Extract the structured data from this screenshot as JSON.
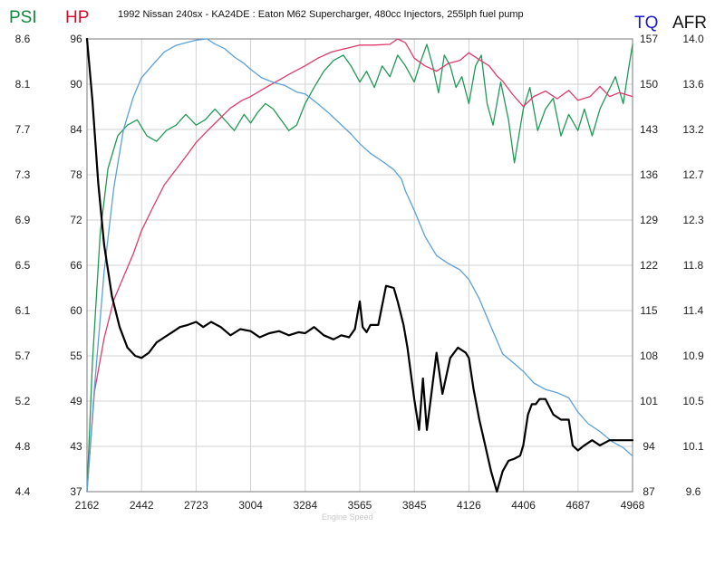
{
  "chart_data": {
    "type": "line",
    "title": "1992 Nissan 240sx - KA24DE : Eaton M62 Supercharger, 480cc Injectors, 255lph fuel pump",
    "xlabel": "Engine Speed",
    "grid": true,
    "x_ticks": [
      "2162",
      "2442",
      "2723",
      "3004",
      "3284",
      "3565",
      "3845",
      "4126",
      "4406",
      "4687",
      "4968"
    ],
    "xlim": [
      2162,
      4968
    ],
    "axes": {
      "psi": {
        "label": "PSI",
        "color": "#0f8a3c",
        "ticks": [
          "8.6",
          "8.1",
          "7.7",
          "7.3",
          "6.9",
          "6.5",
          "6.1",
          "5.7",
          "5.2",
          "4.8",
          "4.4"
        ],
        "ylim": [
          4.4,
          8.6
        ]
      },
      "hp": {
        "label": "HP",
        "color": "#d0102a",
        "ticks": [
          "96",
          "90",
          "84",
          "78",
          "72",
          "66",
          "60",
          "55",
          "49",
          "43",
          "37"
        ],
        "ylim": [
          37,
          96
        ]
      },
      "tq": {
        "label": "TQ",
        "color": "#1a1acc",
        "ticks": [
          "157",
          "150",
          "143",
          "136",
          "129",
          "122",
          "115",
          "108",
          "101",
          "94",
          "87"
        ],
        "ylim": [
          87,
          157
        ]
      },
      "afr": {
        "label": "AFR",
        "color": "#111111",
        "ticks": [
          "14.0",
          "13.6",
          "13.2",
          "12.7",
          "12.3",
          "11.8",
          "11.4",
          "10.9",
          "10.5",
          "10.1",
          "9.6"
        ],
        "ylim": [
          9.6,
          14.0
        ]
      }
    },
    "series": [
      {
        "name": "PSI",
        "axis": "psi",
        "color": "#1e9a55",
        "x": [
          2162,
          2190,
          2230,
          2270,
          2320,
          2370,
          2420,
          2470,
          2520,
          2570,
          2620,
          2670,
          2723,
          2770,
          2820,
          2870,
          2920,
          2970,
          3004,
          3040,
          3080,
          3120,
          3160,
          3200,
          3240,
          3284,
          3330,
          3380,
          3430,
          3480,
          3520,
          3565,
          3600,
          3640,
          3680,
          3720,
          3760,
          3800,
          3845,
          3880,
          3910,
          3940,
          3970,
          4000,
          4030,
          4060,
          4090,
          4126,
          4160,
          4190,
          4220,
          4250,
          4290,
          4330,
          4360,
          4406,
          4440,
          4480,
          4520,
          4560,
          4600,
          4640,
          4687,
          4720,
          4760,
          4800,
          4840,
          4880,
          4920,
          4950,
          4968
        ],
        "y": [
          4.4,
          5.6,
          6.8,
          7.4,
          7.7,
          7.8,
          7.85,
          7.7,
          7.65,
          7.75,
          7.8,
          7.9,
          7.8,
          7.85,
          7.95,
          7.85,
          7.75,
          7.9,
          7.82,
          7.92,
          8.0,
          7.95,
          7.85,
          7.75,
          7.8,
          8.0,
          8.15,
          8.3,
          8.4,
          8.45,
          8.35,
          8.2,
          8.3,
          8.15,
          8.35,
          8.25,
          8.45,
          8.35,
          8.2,
          8.4,
          8.55,
          8.35,
          8.1,
          8.45,
          8.35,
          8.15,
          8.25,
          8.0,
          8.35,
          8.45,
          8.0,
          7.8,
          8.2,
          7.85,
          7.45,
          7.95,
          8.15,
          7.75,
          7.95,
          8.05,
          7.7,
          7.9,
          7.75,
          7.95,
          7.7,
          7.95,
          8.1,
          8.25,
          8.0,
          8.35,
          8.55
        ]
      },
      {
        "name": "HP",
        "axis": "hp",
        "color": "#e03a6a",
        "x": [
          2162,
          2200,
          2250,
          2300,
          2350,
          2400,
          2442,
          2500,
          2560,
          2620,
          2680,
          2723,
          2780,
          2840,
          2900,
          2960,
          3004,
          3070,
          3140,
          3210,
          3284,
          3350,
          3420,
          3500,
          3565,
          3640,
          3720,
          3760,
          3800,
          3845,
          3900,
          3960,
          4020,
          4080,
          4126,
          4180,
          4230,
          4270,
          4300,
          4350,
          4406,
          4460,
          4520,
          4580,
          4640,
          4687,
          4750,
          4800,
          4850,
          4900,
          4968
        ],
        "y": [
          37,
          50,
          57,
          62,
          65,
          68,
          71,
          74,
          77,
          79,
          81,
          82.5,
          84,
          85.5,
          87,
          88,
          88.5,
          89.5,
          90.5,
          91.5,
          92.5,
          93.5,
          94.3,
          94.8,
          95.2,
          95.2,
          95.3,
          96,
          95.5,
          93.5,
          92.5,
          91.8,
          92.8,
          93.2,
          94.2,
          93.3,
          92.5,
          91.2,
          90.5,
          88.8,
          87.2,
          88.5,
          89.2,
          88.2,
          89.3,
          88,
          88.5,
          89.8,
          88.5,
          89,
          88.5
        ]
      },
      {
        "name": "TQ",
        "axis": "tq",
        "color": "#5ba0d8",
        "x": [
          2162,
          2200,
          2250,
          2300,
          2350,
          2400,
          2442,
          2500,
          2560,
          2620,
          2680,
          2723,
          2780,
          2820,
          2870,
          2920,
          2970,
          3004,
          3060,
          3120,
          3180,
          3240,
          3284,
          3340,
          3400,
          3460,
          3520,
          3565,
          3620,
          3680,
          3740,
          3780,
          3800,
          3845,
          3900,
          3960,
          4020,
          4080,
          4126,
          4180,
          4240,
          4300,
          4360,
          4406,
          4460,
          4520,
          4580,
          4640,
          4687,
          4740,
          4800,
          4860,
          4920,
          4968
        ],
        "y": [
          87,
          103,
          121,
          134,
          143,
          148,
          151,
          153,
          155,
          156,
          156.5,
          156.8,
          157,
          156.2,
          155.5,
          154.2,
          153.2,
          152.3,
          151,
          150.3,
          149.8,
          148.8,
          148.5,
          147.2,
          145.7,
          144,
          142.3,
          140.8,
          139.3,
          138.1,
          136.8,
          135.3,
          133.5,
          130.5,
          126.5,
          123.5,
          122.3,
          121.3,
          119.8,
          116.8,
          112.5,
          108.3,
          106.8,
          105.6,
          103.8,
          102.8,
          102.3,
          101.5,
          99.3,
          97.5,
          96.3,
          94.8,
          93.8,
          92.5
        ]
      },
      {
        "name": "AFR",
        "axis": "afr",
        "color": "#000000",
        "x": [
          2162,
          2190,
          2220,
          2250,
          2290,
          2330,
          2370,
          2410,
          2442,
          2480,
          2520,
          2560,
          2600,
          2640,
          2680,
          2723,
          2760,
          2800,
          2850,
          2900,
          2950,
          3004,
          3050,
          3100,
          3150,
          3200,
          3250,
          3284,
          3330,
          3380,
          3430,
          3470,
          3510,
          3540,
          3565,
          3580,
          3600,
          3620,
          3660,
          3700,
          3740,
          3760,
          3790,
          3810,
          3845,
          3870,
          3890,
          3910,
          3930,
          3960,
          3990,
          4030,
          4070,
          4110,
          4126,
          4150,
          4180,
          4210,
          4240,
          4270,
          4300,
          4330,
          4360,
          4390,
          4406,
          4430,
          4450,
          4470,
          4490,
          4520,
          4560,
          4600,
          4640,
          4660,
          4687,
          4720,
          4760,
          4800,
          4850,
          4900,
          4968
        ],
        "y": [
          14.0,
          13.4,
          12.6,
          12.0,
          11.5,
          11.2,
          11.0,
          10.92,
          10.9,
          10.95,
          11.05,
          11.1,
          11.15,
          11.2,
          11.22,
          11.25,
          11.2,
          11.25,
          11.2,
          11.12,
          11.18,
          11.16,
          11.1,
          11.14,
          11.16,
          11.12,
          11.15,
          11.14,
          11.2,
          11.12,
          11.08,
          11.12,
          11.1,
          11.18,
          11.45,
          11.2,
          11.15,
          11.22,
          11.22,
          11.6,
          11.58,
          11.45,
          11.22,
          11.0,
          10.5,
          10.2,
          10.7,
          10.2,
          10.5,
          10.95,
          10.55,
          10.9,
          11.0,
          10.95,
          10.9,
          10.6,
          10.3,
          10.05,
          9.8,
          9.6,
          9.8,
          9.9,
          9.92,
          9.95,
          10.05,
          10.35,
          10.45,
          10.45,
          10.5,
          10.5,
          10.35,
          10.3,
          10.3,
          10.05,
          10.0,
          10.05,
          10.1,
          10.05,
          10.1,
          10.1,
          10.1
        ]
      }
    ]
  }
}
